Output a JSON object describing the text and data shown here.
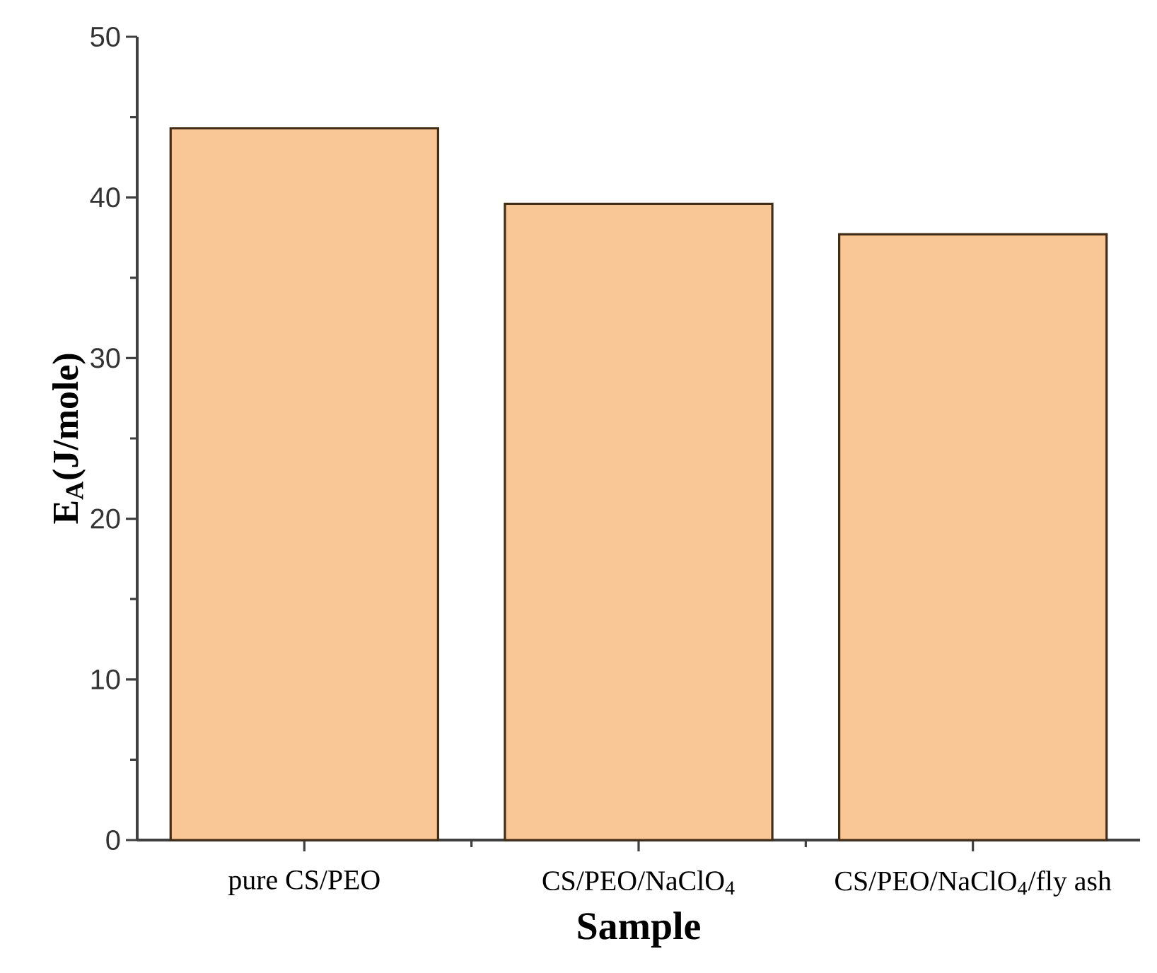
{
  "chart_data": {
    "type": "bar",
    "xlabel": "Sample",
    "ylabel": "E$_{A}$(J/mole)",
    "categories": [
      "pure CS/PEO",
      "CS/PEO/NaClO$_{4}$",
      "CS/PEO/NaClO$_{4}$/fly ash"
    ],
    "values": [
      44.3,
      39.6,
      37.7
    ],
    "color": "#f9c795",
    "ylim": [
      0,
      50
    ],
    "yticks": [
      0,
      10,
      20,
      30,
      40,
      50
    ]
  }
}
